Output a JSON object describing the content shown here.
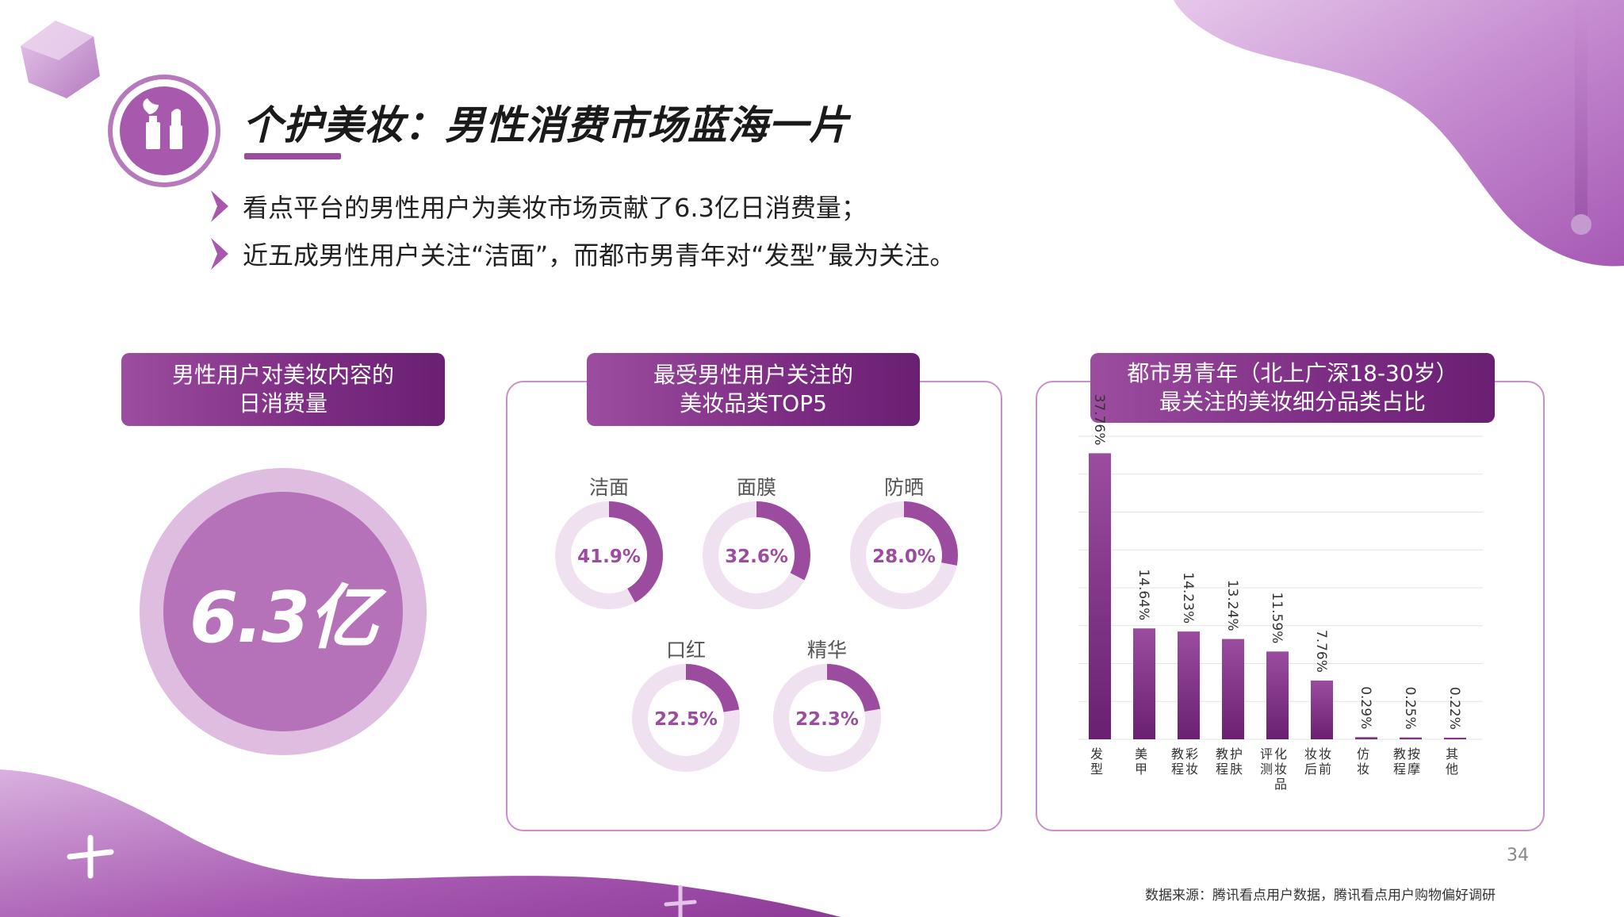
{
  "header": {
    "title": "个护美妆：男性消费市场蓝海一片",
    "bullets": [
      "看点平台的男性用户为美妆市场贡献了6.3亿日消费量；",
      "近五成男性用户关注“洁面”，而都市男青年对“发型”最为关注。"
    ]
  },
  "panel_left": {
    "title_line1": "男性用户对美妆内容的",
    "title_line2": "日消费量",
    "value": "6.3亿"
  },
  "panel_middle": {
    "title_line1": "最受男性用户关注的",
    "title_line2": "美妆品类TOP5"
  },
  "panel_right": {
    "title_line1": "都市男青年（北上广深18-30岁）",
    "title_line2": "最关注的美妆细分品类占比"
  },
  "footer": {
    "page_number": "34",
    "source": "数据来源：腾讯看点用户数据，腾讯看点用户购物偏好调研"
  },
  "colors": {
    "primary": "#9b4c9f",
    "light": "#f0e1f1",
    "bar_top": "#9b4c9f",
    "bar_bottom": "#6a2070"
  },
  "chart_data": [
    {
      "type": "pie",
      "variant": "donut",
      "categories": [
        "洁面",
        "面膜",
        "防晒",
        "口红",
        "精华"
      ],
      "values": [
        41.9,
        32.6,
        28.0,
        22.5,
        22.3
      ],
      "value_labels": [
        "41.9%",
        "32.6%",
        "28.0%",
        "22.5%",
        "22.3%"
      ],
      "unit": "%"
    },
    {
      "type": "bar",
      "categories": [
        "发型",
        "美甲",
        "彩妆教程",
        "护肤教程",
        "化妆品评测",
        "妆前妆后",
        "仿妆",
        "按摩教程",
        "其他"
      ],
      "category_labels": [
        [
          "发",
          "型"
        ],
        [
          "美",
          "甲"
        ],
        [
          "彩",
          "妆",
          "教",
          "程"
        ],
        [
          "护",
          "肤",
          "教",
          "程"
        ],
        [
          "化",
          "妆",
          "品",
          "评",
          "测"
        ],
        [
          "妆",
          "前",
          "妆",
          "后"
        ],
        [
          "仿",
          "妆"
        ],
        [
          "按",
          "摩",
          "教",
          "程"
        ],
        [
          "其",
          "他"
        ]
      ],
      "values": [
        37.76,
        14.64,
        14.23,
        13.24,
        11.59,
        7.76,
        0.29,
        0.25,
        0.22
      ],
      "value_labels": [
        "37.76%",
        "14.64%",
        "14.23%",
        "13.24%",
        "11.59%",
        "7.76%",
        "0.29%",
        "0.25%",
        "0.22%"
      ],
      "ylim": [
        0,
        40
      ],
      "grid": true,
      "unit": "%"
    }
  ]
}
